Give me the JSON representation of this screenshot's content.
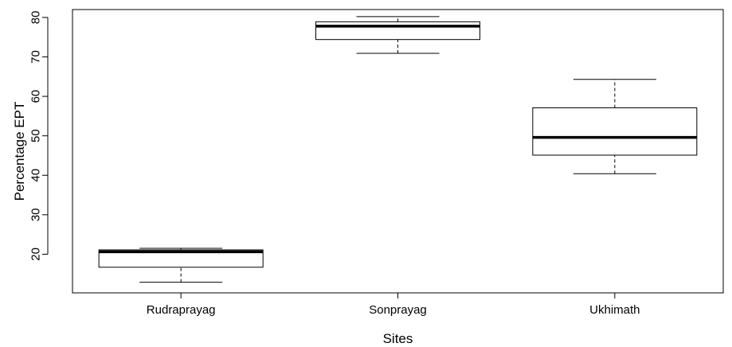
{
  "chart_data": {
    "type": "boxplot",
    "xlabel": "Sites",
    "ylabel": "Percentage EPT",
    "categories": [
      "Rudraprayag",
      "Sonprayag",
      "Ukhimath"
    ],
    "yticks": [
      20,
      30,
      40,
      50,
      60,
      70,
      80
    ],
    "ytick_labels": [
      "20",
      "30",
      "40",
      "50",
      "60",
      "70",
      "80"
    ],
    "ylim": [
      10.2,
      82
    ],
    "boxes": [
      {
        "category": "Rudraprayag",
        "whisker_low": 12.9,
        "q1": 16.7,
        "median": 20.6,
        "q3": 21.1,
        "whisker_high": 21.5
      },
      {
        "category": "Sonprayag",
        "whisker_low": 70.9,
        "q1": 74.4,
        "median": 77.8,
        "q3": 78.9,
        "whisker_high": 80.2
      },
      {
        "category": "Ukhimath",
        "whisker_low": 40.4,
        "q1": 45.1,
        "median": 49.6,
        "q3": 57.1,
        "whisker_high": 64.3
      }
    ],
    "grid": false,
    "legend": "none"
  }
}
